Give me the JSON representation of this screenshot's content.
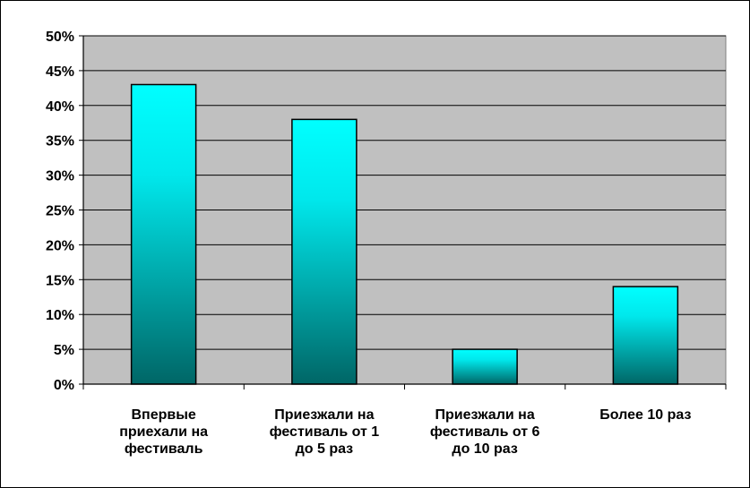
{
  "chart_data": {
    "type": "bar",
    "categories": [
      [
        "Впервые",
        "приехали на",
        "фестиваль"
      ],
      [
        "Приезжали на",
        "фестиваль от 1",
        "до 5 раз"
      ],
      [
        "Приезжали на",
        "фестиваль от 6",
        "до 10 раз"
      ],
      [
        "Более 10 раз"
      ]
    ],
    "values": [
      0.43,
      0.38,
      0.05,
      0.14
    ],
    "yticks": [
      "0%",
      "5%",
      "10%",
      "15%",
      "20%",
      "25%",
      "30%",
      "35%",
      "40%",
      "45%",
      "50%"
    ],
    "ylim": [
      0,
      0.5
    ],
    "ytick_step": 0.05,
    "grid": true,
    "legend": "none",
    "colors": {
      "plot_background": "#c0c0c0",
      "bar_top": "#00ffff",
      "bar_bottom": "#006666",
      "gridline": "#000000"
    }
  }
}
